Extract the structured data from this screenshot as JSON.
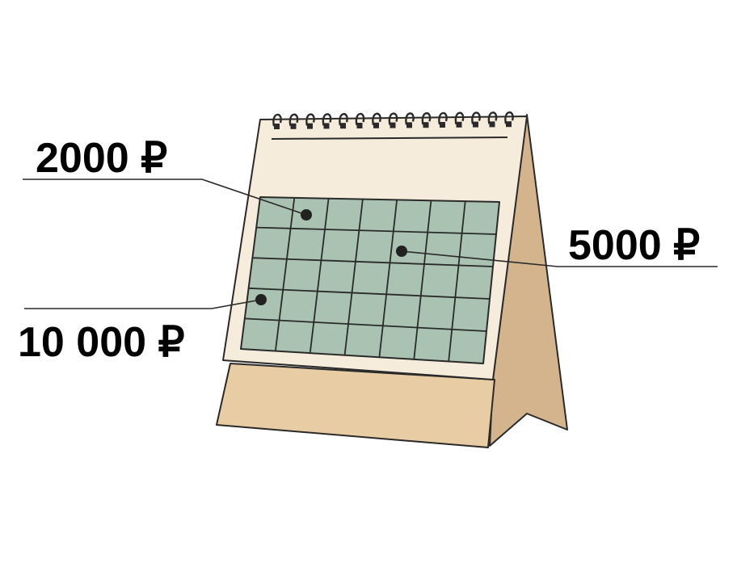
{
  "illustration": "desk-calendar",
  "colors": {
    "outline": "#2a2a2a",
    "page_fill": "#f5ecdc",
    "grid_fill": "#a9c2b2",
    "stand_front": "#e8cca3",
    "stand_side": "#d4b48c",
    "text": "#222222"
  },
  "labels": {
    "price_a": "2000 ₽",
    "price_b": "5000 ₽",
    "price_c": "10 000 ₽"
  },
  "calendar_grid": {
    "rows": 5,
    "cols": 7
  }
}
